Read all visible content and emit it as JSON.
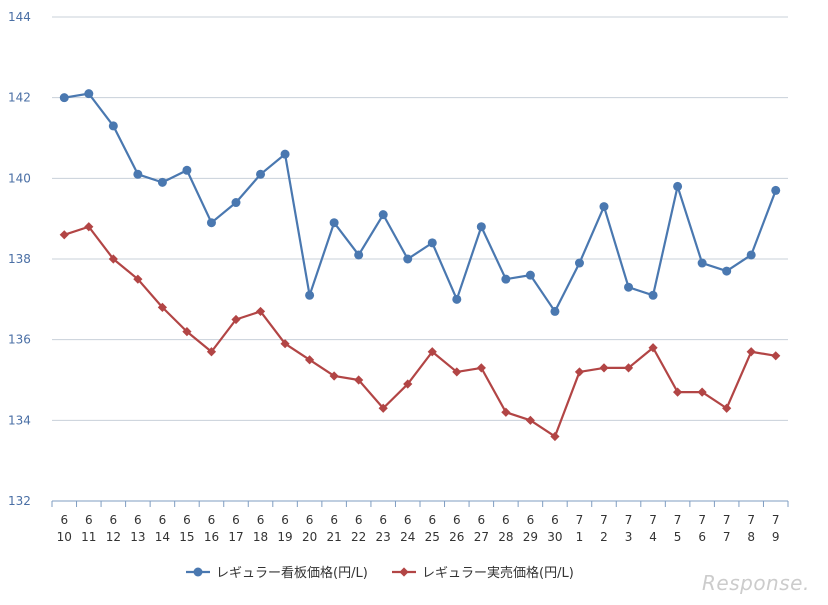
{
  "chart_data": {
    "type": "line",
    "title": "",
    "xlabel": "",
    "ylabel": "",
    "ylim": [
      132,
      144
    ],
    "yticks": [
      "144",
      "142",
      "140",
      "138",
      "136",
      "134",
      "132"
    ],
    "grid": true,
    "legend_position": "bottom",
    "categories": [
      {
        "month": "6",
        "day": "10"
      },
      {
        "month": "6",
        "day": "11"
      },
      {
        "month": "6",
        "day": "12"
      },
      {
        "month": "6",
        "day": "13"
      },
      {
        "month": "6",
        "day": "14"
      },
      {
        "month": "6",
        "day": "15"
      },
      {
        "month": "6",
        "day": "16"
      },
      {
        "month": "6",
        "day": "17"
      },
      {
        "month": "6",
        "day": "18"
      },
      {
        "month": "6",
        "day": "19"
      },
      {
        "month": "6",
        "day": "20"
      },
      {
        "month": "6",
        "day": "21"
      },
      {
        "month": "6",
        "day": "22"
      },
      {
        "month": "6",
        "day": "23"
      },
      {
        "month": "6",
        "day": "24"
      },
      {
        "month": "6",
        "day": "25"
      },
      {
        "month": "6",
        "day": "26"
      },
      {
        "month": "6",
        "day": "27"
      },
      {
        "month": "6",
        "day": "28"
      },
      {
        "month": "6",
        "day": "29"
      },
      {
        "month": "6",
        "day": "30"
      },
      {
        "month": "7",
        "day": "1"
      },
      {
        "month": "7",
        "day": "2"
      },
      {
        "month": "7",
        "day": "3"
      },
      {
        "month": "7",
        "day": "4"
      },
      {
        "month": "7",
        "day": "5"
      },
      {
        "month": "7",
        "day": "6"
      },
      {
        "month": "7",
        "day": "7"
      },
      {
        "month": "7",
        "day": "8"
      },
      {
        "month": "7",
        "day": "9"
      }
    ],
    "series": [
      {
        "name": "レギュラー看板価格(円/L)",
        "color": "#4a78b0",
        "marker": "circle",
        "values": [
          142.0,
          142.1,
          141.3,
          140.1,
          139.9,
          140.2,
          138.9,
          139.4,
          140.1,
          140.6,
          137.1,
          138.9,
          138.1,
          139.1,
          138.0,
          138.4,
          137.0,
          138.8,
          137.5,
          137.6,
          136.7,
          137.9,
          139.3,
          137.3,
          137.1,
          139.8,
          137.9,
          137.7,
          138.1,
          139.7
        ]
      },
      {
        "name": "レギュラー実売価格(円/L)",
        "color": "#b24545",
        "marker": "diamond",
        "values": [
          138.6,
          138.8,
          138.0,
          137.5,
          136.8,
          136.2,
          135.7,
          136.5,
          136.7,
          135.9,
          135.5,
          135.1,
          135.0,
          134.3,
          134.9,
          135.7,
          135.2,
          135.3,
          134.2,
          134.0,
          133.6,
          135.2,
          135.3,
          135.3,
          135.8,
          134.7,
          134.7,
          134.3,
          135.7,
          135.6
        ]
      }
    ]
  },
  "watermark": "Response."
}
